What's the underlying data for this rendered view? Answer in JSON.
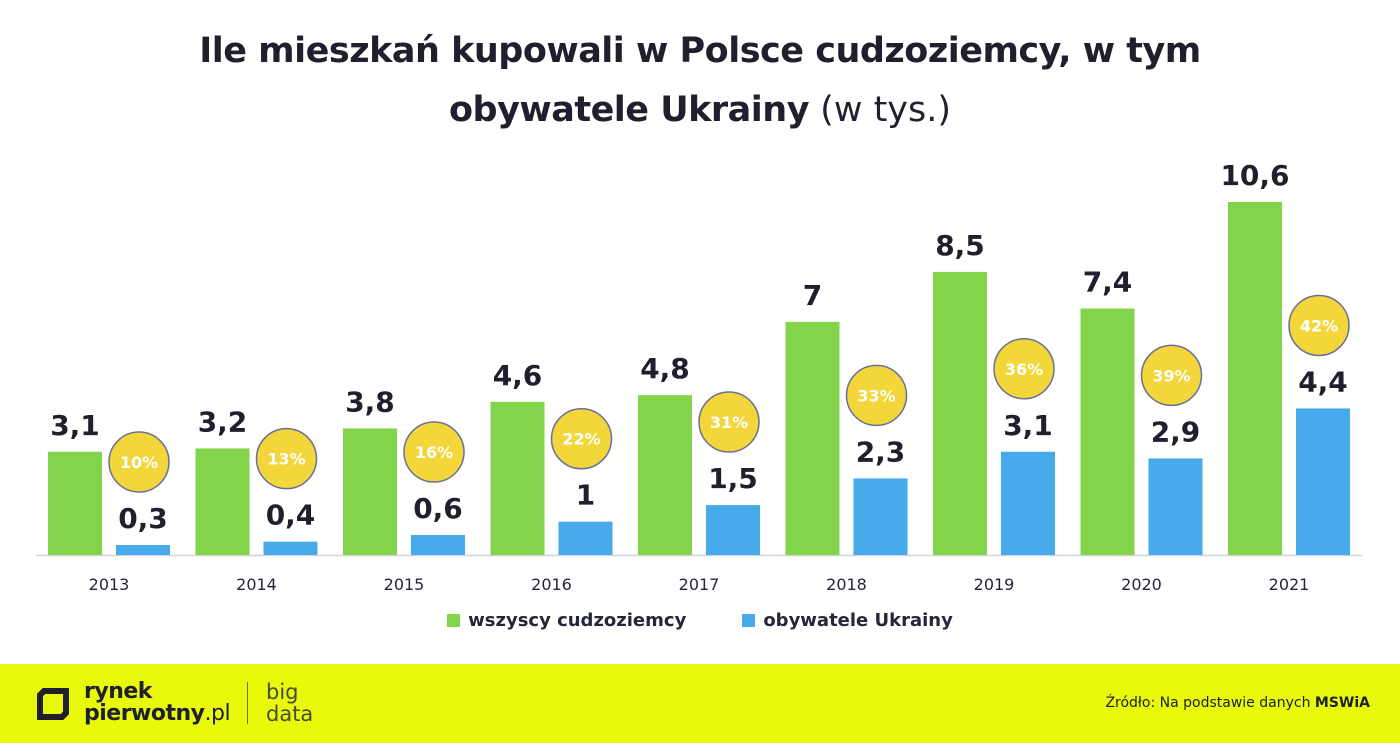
{
  "title": {
    "line1": "Ile mieszkań kupowali w Polsce cudzoziemcy, w tym",
    "line2_bold": "obywatele Ukrainy",
    "line2_normal": "(w tys.)"
  },
  "chart_data": {
    "type": "bar",
    "categories": [
      "2013",
      "2014",
      "2015",
      "2016",
      "2017",
      "2018",
      "2019",
      "2020",
      "2021"
    ],
    "series": [
      {
        "name": "wszyscy cudzoziemcy",
        "color": "#84d44b",
        "values": [
          3.1,
          3.2,
          3.8,
          4.6,
          4.8,
          7,
          8.5,
          7.4,
          10.6
        ],
        "labels": [
          "3,1",
          "3,2",
          "3,8",
          "4,6",
          "4,8",
          "7",
          "8,5",
          "7,4",
          "10,6"
        ]
      },
      {
        "name": "obywatele Ukrainy",
        "color": "#47aaeb",
        "values": [
          0.3,
          0.4,
          0.6,
          1,
          1.5,
          2.3,
          3.1,
          2.9,
          4.4
        ],
        "labels": [
          "0,3",
          "0,4",
          "0,6",
          "1",
          "1,5",
          "2,3",
          "3,1",
          "2,9",
          "4,4"
        ]
      }
    ],
    "share_labels": [
      "10%",
      "13%",
      "16%",
      "22%",
      "31%",
      "33%",
      "36%",
      "39%",
      "42%"
    ],
    "share_color": "#f2d63a",
    "ylim": [
      0,
      11
    ],
    "grid": false,
    "legend_position": "bottom-center",
    "xlabel": "",
    "ylabel": ""
  },
  "legend": {
    "items": [
      {
        "label": "wszyscy cudzoziemcy",
        "color": "#84d44b"
      },
      {
        "label": "obywatele Ukrainy",
        "color": "#47aaeb"
      }
    ]
  },
  "footer": {
    "background": "#e8fa0a",
    "logo_line1": "rynek",
    "logo_line2": "pierwotny",
    "logo_suffix": ".pl",
    "big_line1": "big",
    "big_line2": "data",
    "source_prefix": "Źródło: Na podstawie danych",
    "source_bold": "MSWiA"
  }
}
